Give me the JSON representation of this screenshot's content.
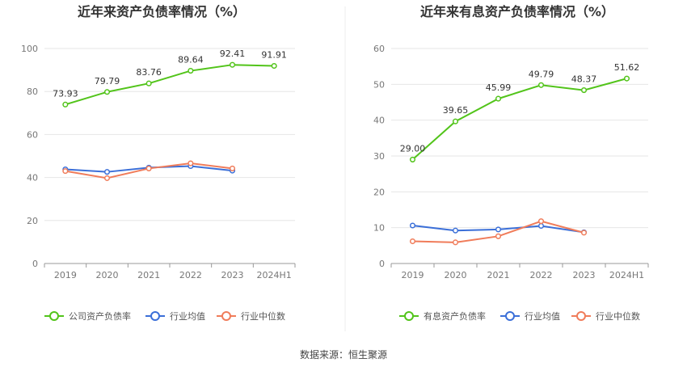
{
  "footer": {
    "source": "数据来源：恒生聚源"
  },
  "legend_colors": {
    "main_left": "#52c41a",
    "main_right": "#52c41a",
    "avg": "#3b6fd8",
    "median": "#f07c5a"
  },
  "chart_data": [
    {
      "type": "line",
      "title": "近年来资产负债率情况（%）",
      "categories": [
        "2019",
        "2020",
        "2021",
        "2022",
        "2023",
        "2024H1"
      ],
      "ylim": [
        0,
        100
      ],
      "yticks": [
        0,
        20,
        40,
        60,
        80,
        100
      ],
      "grid": true,
      "legend_position": "bottom",
      "series": [
        {
          "name": "公司资产负债率",
          "color": "#52c41a",
          "values": [
            73.93,
            79.79,
            83.76,
            89.64,
            92.41,
            91.91
          ],
          "labels": [
            "73.93",
            "79.79",
            "83.76",
            "89.64",
            "92.41",
            "91.91"
          ]
        },
        {
          "name": "行业均值",
          "color": "#3b6fd8",
          "values": [
            43.8,
            42.6,
            44.6,
            45.3,
            43.2,
            null
          ]
        },
        {
          "name": "行业中位数",
          "color": "#f07c5a",
          "values": [
            43.0,
            39.7,
            44.2,
            46.6,
            44.2,
            null
          ]
        }
      ]
    },
    {
      "type": "line",
      "title": "近年来有息资产负债率情况（%）",
      "categories": [
        "2019",
        "2020",
        "2021",
        "2022",
        "2023",
        "2024H1"
      ],
      "ylim": [
        0,
        60
      ],
      "yticks": [
        0,
        10,
        20,
        30,
        40,
        50,
        60
      ],
      "grid": true,
      "legend_position": "bottom",
      "series": [
        {
          "name": "有息资产负债率",
          "color": "#52c41a",
          "values": [
            29.0,
            39.65,
            45.99,
            49.79,
            48.37,
            51.62
          ],
          "labels": [
            "29.00",
            "39.65",
            "45.99",
            "49.79",
            "48.37",
            "51.62"
          ]
        },
        {
          "name": "行业均值",
          "color": "#3b6fd8",
          "values": [
            10.6,
            9.2,
            9.5,
            10.5,
            8.7,
            null
          ]
        },
        {
          "name": "行业中位数",
          "color": "#f07c5a",
          "values": [
            6.2,
            5.9,
            7.6,
            11.8,
            8.6,
            null
          ]
        }
      ]
    }
  ]
}
